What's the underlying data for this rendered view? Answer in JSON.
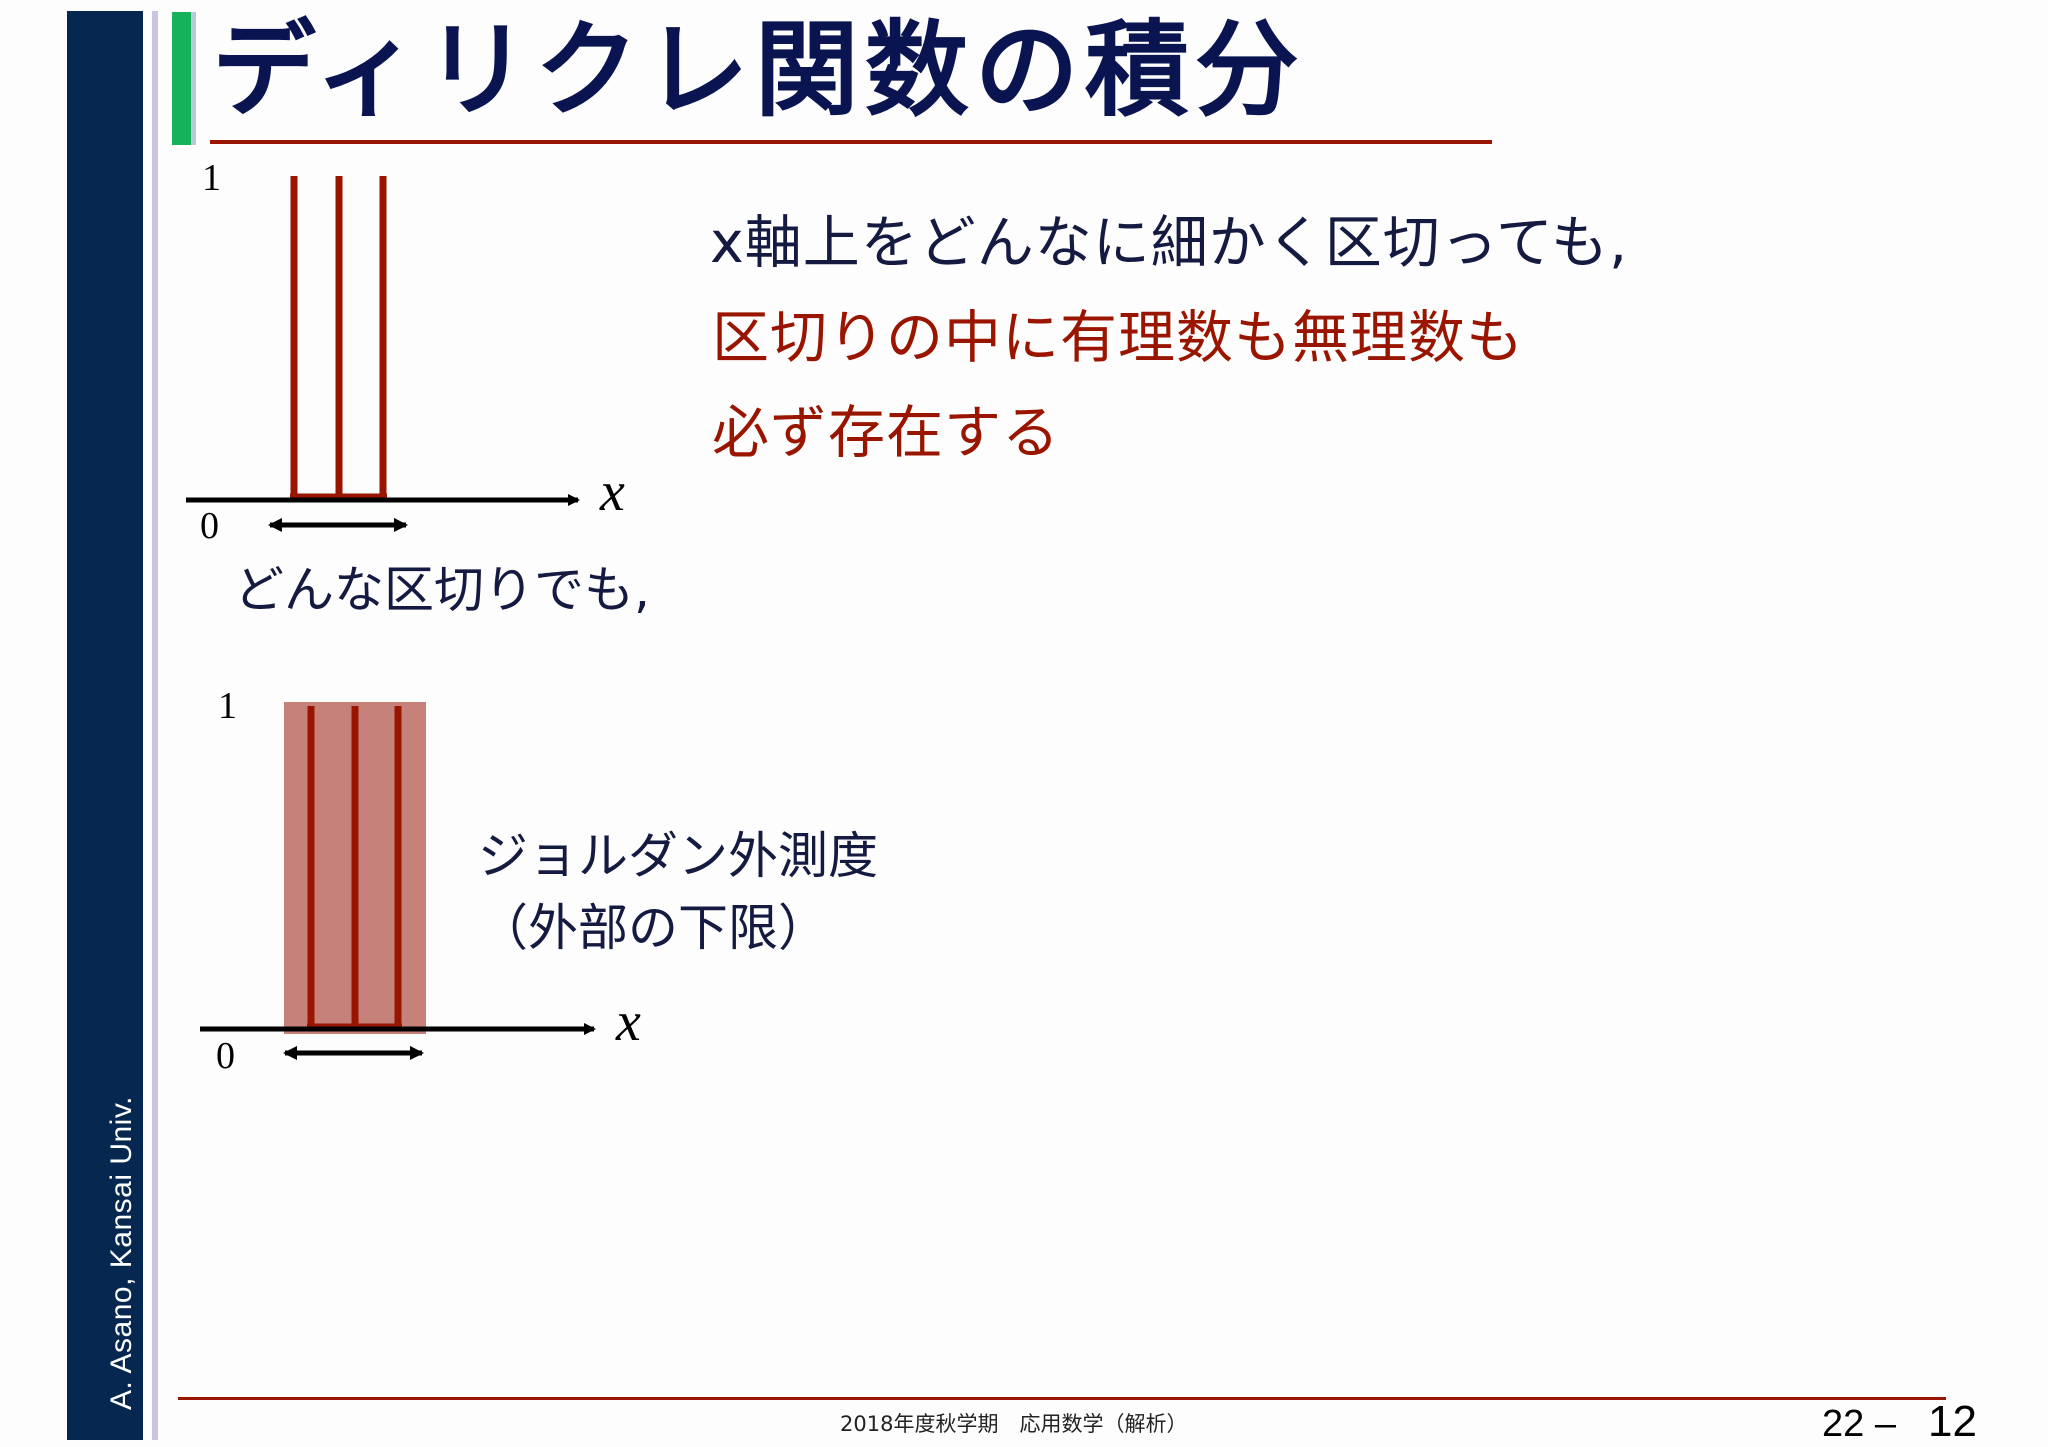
{
  "sidebar": {
    "author": "A. Asano, Kansai Univ."
  },
  "title": "ディリクレ関数の積分",
  "main": {
    "line1": "x軸上をどんなに細かく区切っても,",
    "line2": "区切りの中に有理数も無理数も",
    "line3": "必ず存在する"
  },
  "figure_top": {
    "y_tick": "1",
    "origin": "0",
    "axis_label": "x",
    "caption": "どんな区切りでも,"
  },
  "figure_bottom": {
    "y_tick": "1",
    "origin": "0",
    "axis_label": "x",
    "caption_line1": "ジョルダン外測度",
    "caption_line2": "（外部の下限）"
  },
  "footer": {
    "course": "2018年度秋学期　応用数学（解析）",
    "chapter": "22 –",
    "page": "12"
  },
  "colors": {
    "sidebar": "#062850",
    "title_text": "#0a1450",
    "accent_green": "#16b25a",
    "accent_red": "#9a1500",
    "shaded_region": "#c6827a"
  }
}
